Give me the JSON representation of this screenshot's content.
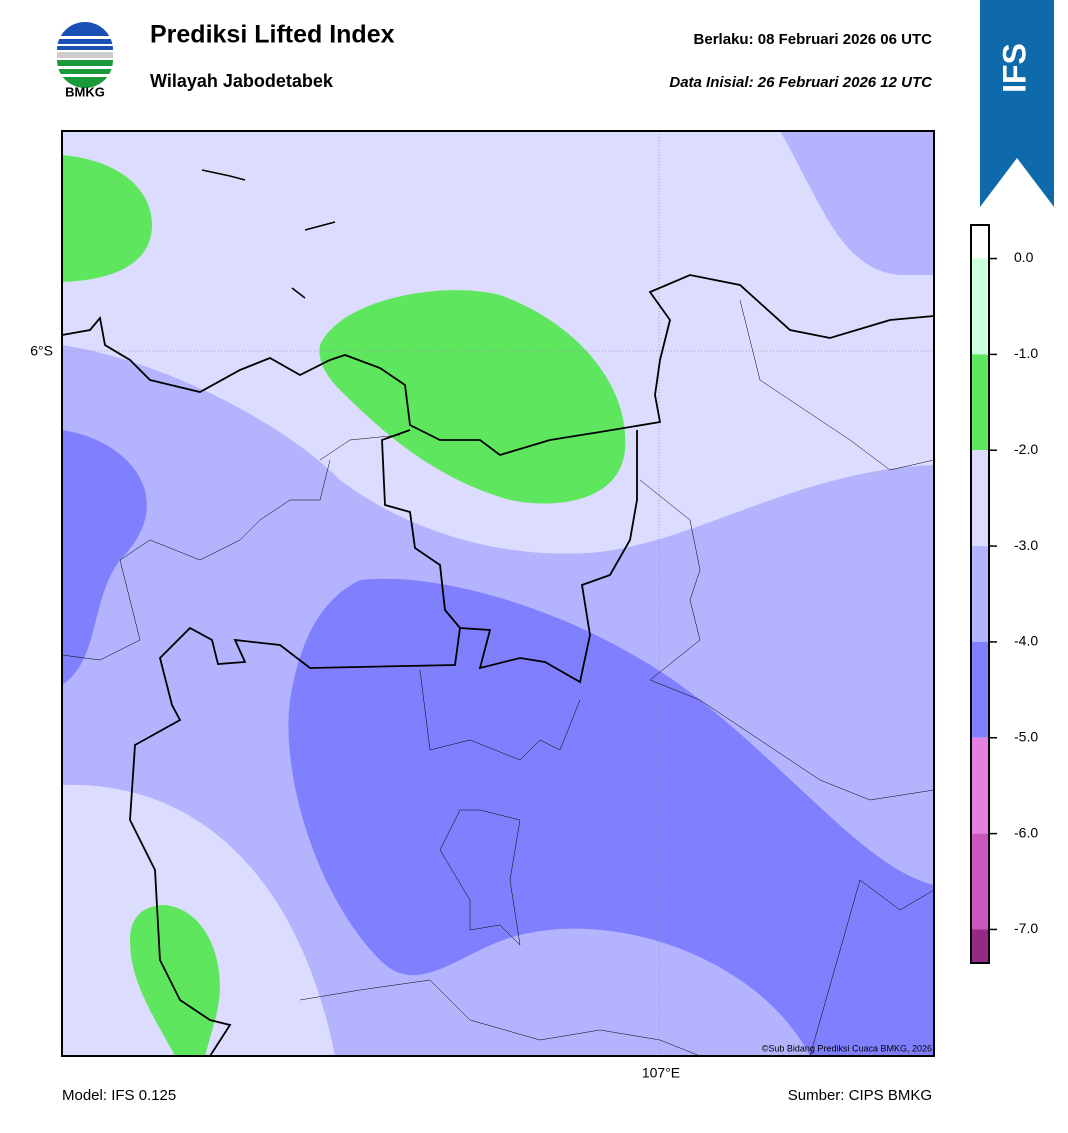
{
  "header": {
    "logo_text": "BMKG",
    "title": "Prediksi Lifted Index",
    "subtitle": "Wilayah Jabodetabek",
    "valid": "Berlaku:  08 Februari 2026 06 UTC",
    "init": "Data Inisial:  26 Februari 2026 12 UTC",
    "badge": "IFS"
  },
  "map": {
    "lat_label": "6°S",
    "lon_label": "107°E",
    "credit": "©Sub Bidang Prediksi Cuaca BMKG, 2026"
  },
  "colorbar": {
    "lim": [
      -7.35,
      0.35
    ],
    "ticks": [
      {
        "value": 0,
        "label": "0.0"
      },
      {
        "value": -1,
        "label": "-1.0"
      },
      {
        "value": -2,
        "label": "-2.0"
      },
      {
        "value": -3,
        "label": "-3.0"
      },
      {
        "value": -4,
        "label": "-4.0"
      },
      {
        "value": -5,
        "label": "-5.0"
      },
      {
        "value": -6,
        "label": "-6.0"
      },
      {
        "value": -7,
        "label": "-7.0"
      }
    ],
    "bands": [
      {
        "from": 0,
        "to": 0.35,
        "color": "#ffffff"
      },
      {
        "from": -1,
        "to": 0,
        "color": "#ccffdd"
      },
      {
        "from": -2,
        "to": -1,
        "color": "#5fe65f"
      },
      {
        "from": -3,
        "to": -2,
        "color": "#dcdcfe"
      },
      {
        "from": -4,
        "to": -3,
        "color": "#b3b3fe"
      },
      {
        "from": -5,
        "to": -4,
        "color": "#8080fe"
      },
      {
        "from": -6,
        "to": -5,
        "color": "#e680e0"
      },
      {
        "from": -7,
        "to": -6,
        "color": "#c955bd"
      },
      {
        "from": -7.35,
        "to": -7,
        "color": "#922a86"
      }
    ]
  },
  "footer": {
    "model": "Model: IFS 0.125",
    "source": "Sumber: CIPS BMKG"
  }
}
